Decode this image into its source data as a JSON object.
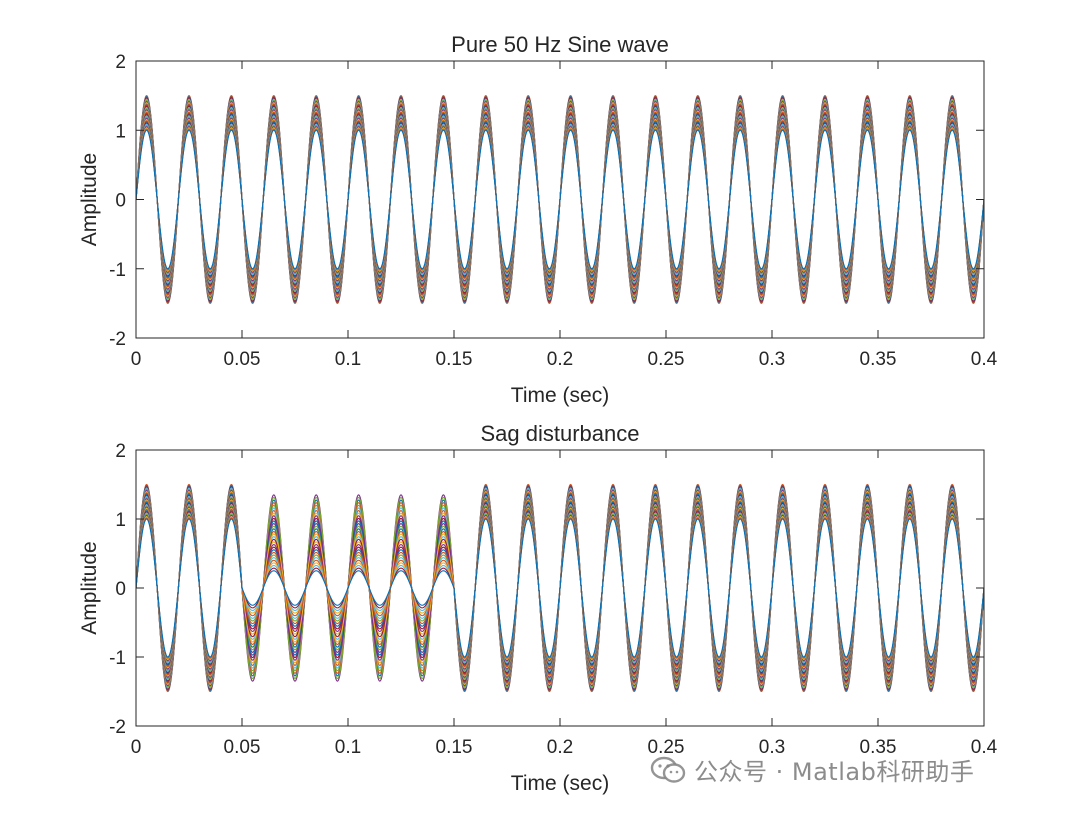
{
  "chart_data": [
    {
      "type": "line",
      "title": "Pure 50 Hz Sine wave",
      "xlabel": "Time (sec)",
      "ylabel": "Amplitude",
      "xlim": [
        0,
        0.4
      ],
      "ylim": [
        -2,
        2
      ],
      "xticks": [
        "0",
        "0.05",
        "0.1",
        "0.15",
        "0.2",
        "0.25",
        "0.3",
        "0.35",
        "0.4"
      ],
      "yticks": [
        "2",
        "1",
        "0",
        "-1",
        "-2"
      ],
      "frequency_hz": 50,
      "amplitude_range": [
        1.0,
        1.5
      ],
      "series_count": 30,
      "grid": false,
      "legend": "none"
    },
    {
      "type": "line",
      "title": "Sag disturbance",
      "xlabel": "Time (sec)",
      "ylabel": "Amplitude",
      "xlim": [
        0,
        0.4
      ],
      "ylim": [
        -2,
        2
      ],
      "xticks": [
        "0",
        "0.05",
        "0.1",
        "0.15",
        "0.2",
        "0.25",
        "0.3",
        "0.35",
        "0.4"
      ],
      "yticks": [
        "2",
        "1",
        "0",
        "-1",
        "-2"
      ],
      "frequency_hz": 50,
      "amplitude_range": [
        1.0,
        1.5
      ],
      "sag_interval": [
        0.05,
        0.15
      ],
      "sag_amplitude_range": [
        0.25,
        1.35
      ],
      "series_count": 30,
      "grid": false,
      "legend": "none"
    }
  ],
  "colors": [
    "#0072bd",
    "#d95319",
    "#edb120",
    "#7e2f8e",
    "#77ac30",
    "#4dbeee",
    "#a2142f"
  ],
  "watermark": {
    "icon": "wechat-icon",
    "text": "公众号 · Matlab科研助手"
  }
}
